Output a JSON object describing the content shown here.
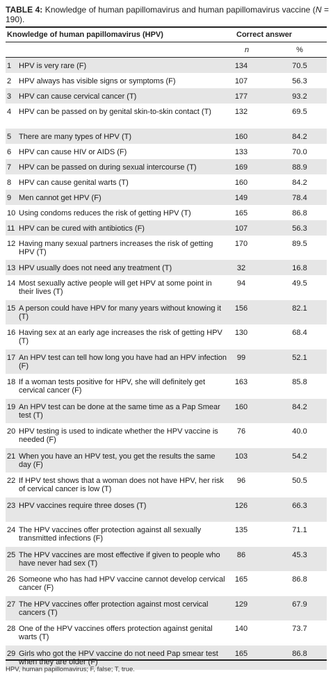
{
  "caption": {
    "label": "TABLE 4:",
    "text_before_n": " Knowledge of human papillomavirus and human papillomavirus vaccine (",
    "n_variable": "N",
    "text_after_n": " = 190)."
  },
  "header": {
    "knowledge_col": "Knowledge of human papillomavirus (HPV)",
    "correct_answer": "Correct answer",
    "n_col": "n",
    "pct_col": "%"
  },
  "rows": [
    {
      "num": "1",
      "question": "HPV is very rare (F)",
      "n": "134",
      "pct": "70.5"
    },
    {
      "num": "2",
      "question": "HPV always has visible signs or symptoms (F)",
      "n": "107",
      "pct": "56.3"
    },
    {
      "num": "3",
      "question": "HPV can cause cervical cancer (T)",
      "n": "177",
      "pct": "93.2"
    },
    {
      "num": "4",
      "question": "HPV can be passed on by genital skin-to-skin contact (T)",
      "n": "132",
      "pct": "69.5"
    },
    {
      "num": "5",
      "question": "There are many types of HPV (T)",
      "n": "160",
      "pct": "84.2"
    },
    {
      "num": "6",
      "question": "HPV can cause HIV or AIDS (F)",
      "n": "133",
      "pct": "70.0"
    },
    {
      "num": "7",
      "question": "HPV can be passed on during sexual intercourse (T)",
      "n": "169",
      "pct": "88.9"
    },
    {
      "num": "8",
      "question": "HPV can cause genital warts (T)",
      "n": "160",
      "pct": "84.2"
    },
    {
      "num": "9",
      "question": "Men cannot get HPV (F)",
      "n": "149",
      "pct": "78.4"
    },
    {
      "num": "10",
      "question": "Using condoms reduces the risk of getting HPV (T)",
      "n": "165",
      "pct": "86.8"
    },
    {
      "num": "11",
      "question": "HPV can be cured with antibiotics (F)",
      "n": "107",
      "pct": "56.3"
    },
    {
      "num": "12",
      "question": "Having many sexual partners increases the risk of getting HPV (T)",
      "n": "170",
      "pct": "89.5"
    },
    {
      "num": "13",
      "question": "HPV usually does not need any treatment (T)",
      "n": "32",
      "pct": "16.8"
    },
    {
      "num": "14",
      "question": "Most sexually active people will get HPV at some point in their lives (T)",
      "n": "94",
      "pct": "49.5"
    },
    {
      "num": "15",
      "question": "A person could have HPV for many years without knowing it (T)",
      "n": "156",
      "pct": "82.1"
    },
    {
      "num": "16",
      "question": "Having sex at an early age increases the risk of getting HPV (T)",
      "n": "130",
      "pct": "68.4"
    },
    {
      "num": "17",
      "question": "An HPV test can tell how long you have had an HPV infection (F)",
      "n": "99",
      "pct": "52.1"
    },
    {
      "num": "18",
      "question": "If a woman tests positive for HPV, she will definitely get cervical cancer (F)",
      "n": "163",
      "pct": "85.8"
    },
    {
      "num": "19",
      "question": "An HPV test can be done at the same time as a Pap Smear test (T)",
      "n": "160",
      "pct": "84.2"
    },
    {
      "num": "20",
      "question": "HPV testing is used to indicate whether the HPV vaccine is needed (F)",
      "n": "76",
      "pct": "40.0"
    },
    {
      "num": "21",
      "question": "When you have an HPV test, you get the results the same day (F)",
      "n": "103",
      "pct": "54.2"
    },
    {
      "num": "22",
      "question": "If HPV test shows that a woman does not have HPV, her risk of cervical cancer is low (T)",
      "n": "96",
      "pct": "50.5"
    },
    {
      "num": "23",
      "question": "HPV vaccines require three doses (T)",
      "n": "126",
      "pct": "66.3"
    },
    {
      "num": "24",
      "question": "The HPV vaccines offer protection against all sexually transmitted infections (F)",
      "n": "135",
      "pct": "71.1"
    },
    {
      "num": "25",
      "question": "The HPV vaccines are most effective if given to people who have never had sex (T)",
      "n": "86",
      "pct": "45.3"
    },
    {
      "num": "26",
      "question": "Someone who has had HPV vaccine cannot develop cervical cancer (F)",
      "n": "165",
      "pct": "86.8"
    },
    {
      "num": "27",
      "question": "The HPV vaccines offer protection against most cervical cancers (T)",
      "n": "129",
      "pct": "67.9"
    },
    {
      "num": "28",
      "question": "One of the HPV vaccines offers protection against genital warts (T)",
      "n": "140",
      "pct": "73.7"
    },
    {
      "num": "29",
      "question": "Girls who got the HPV vaccine do not need Pap smear test when they are older (F)",
      "n": "165",
      "pct": "86.8"
    }
  ],
  "footnote": "HPV, human papillomavirus; F, false; T, true."
}
